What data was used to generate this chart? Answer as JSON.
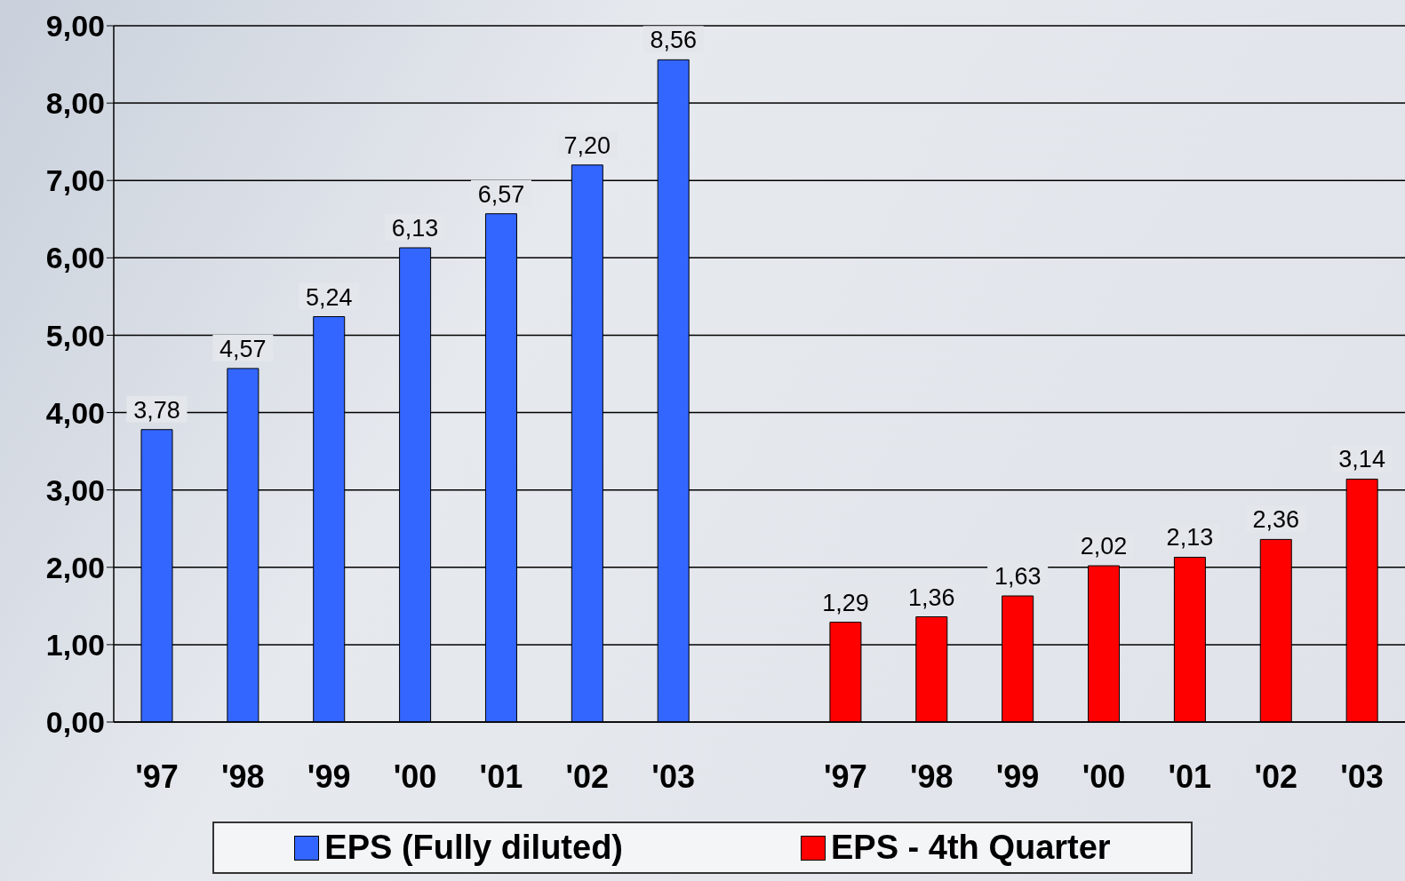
{
  "chart_data": {
    "type": "bar",
    "categories": [
      "'97",
      "'98",
      "'99",
      "'00",
      "'01",
      "'02",
      "'03",
      null,
      "'97",
      "'98",
      "'99",
      "'00",
      "'01",
      "'02",
      "'03"
    ],
    "series": [
      {
        "name": "EPS (Fully diluted)",
        "color": "#3366ff",
        "values": [
          3.78,
          4.57,
          5.24,
          6.13,
          6.57,
          7.2,
          8.56,
          null,
          null,
          null,
          null,
          null,
          null,
          null,
          null
        ],
        "value_labels": [
          "3,78",
          "4,57",
          "5,24",
          "6,13",
          "6,57",
          "7,20",
          "8,56",
          null,
          null,
          null,
          null,
          null,
          null,
          null,
          null
        ]
      },
      {
        "name": "EPS - 4th Quarter",
        "color": "#ff0000",
        "values": [
          null,
          null,
          null,
          null,
          null,
          null,
          null,
          null,
          1.29,
          1.36,
          1.63,
          2.02,
          2.13,
          2.36,
          3.14
        ],
        "value_labels": [
          null,
          null,
          null,
          null,
          null,
          null,
          null,
          null,
          "1,29",
          "1,36",
          "1,63",
          "2,02",
          "2,13",
          "2,36",
          "3,14"
        ]
      }
    ],
    "ylim": [
      0,
      9
    ],
    "yticks": [
      {
        "value": 0,
        "label": "0,00"
      },
      {
        "value": 1,
        "label": "1,00"
      },
      {
        "value": 2,
        "label": "2,00"
      },
      {
        "value": 3,
        "label": "3,00"
      },
      {
        "value": 4,
        "label": "4,00"
      },
      {
        "value": 5,
        "label": "5,00"
      },
      {
        "value": 6,
        "label": "6,00"
      },
      {
        "value": 7,
        "label": "7,00"
      },
      {
        "value": 8,
        "label": "8,00"
      },
      {
        "value": 9,
        "label": "9,00"
      }
    ],
    "grid": "y",
    "legend": "bottom"
  }
}
